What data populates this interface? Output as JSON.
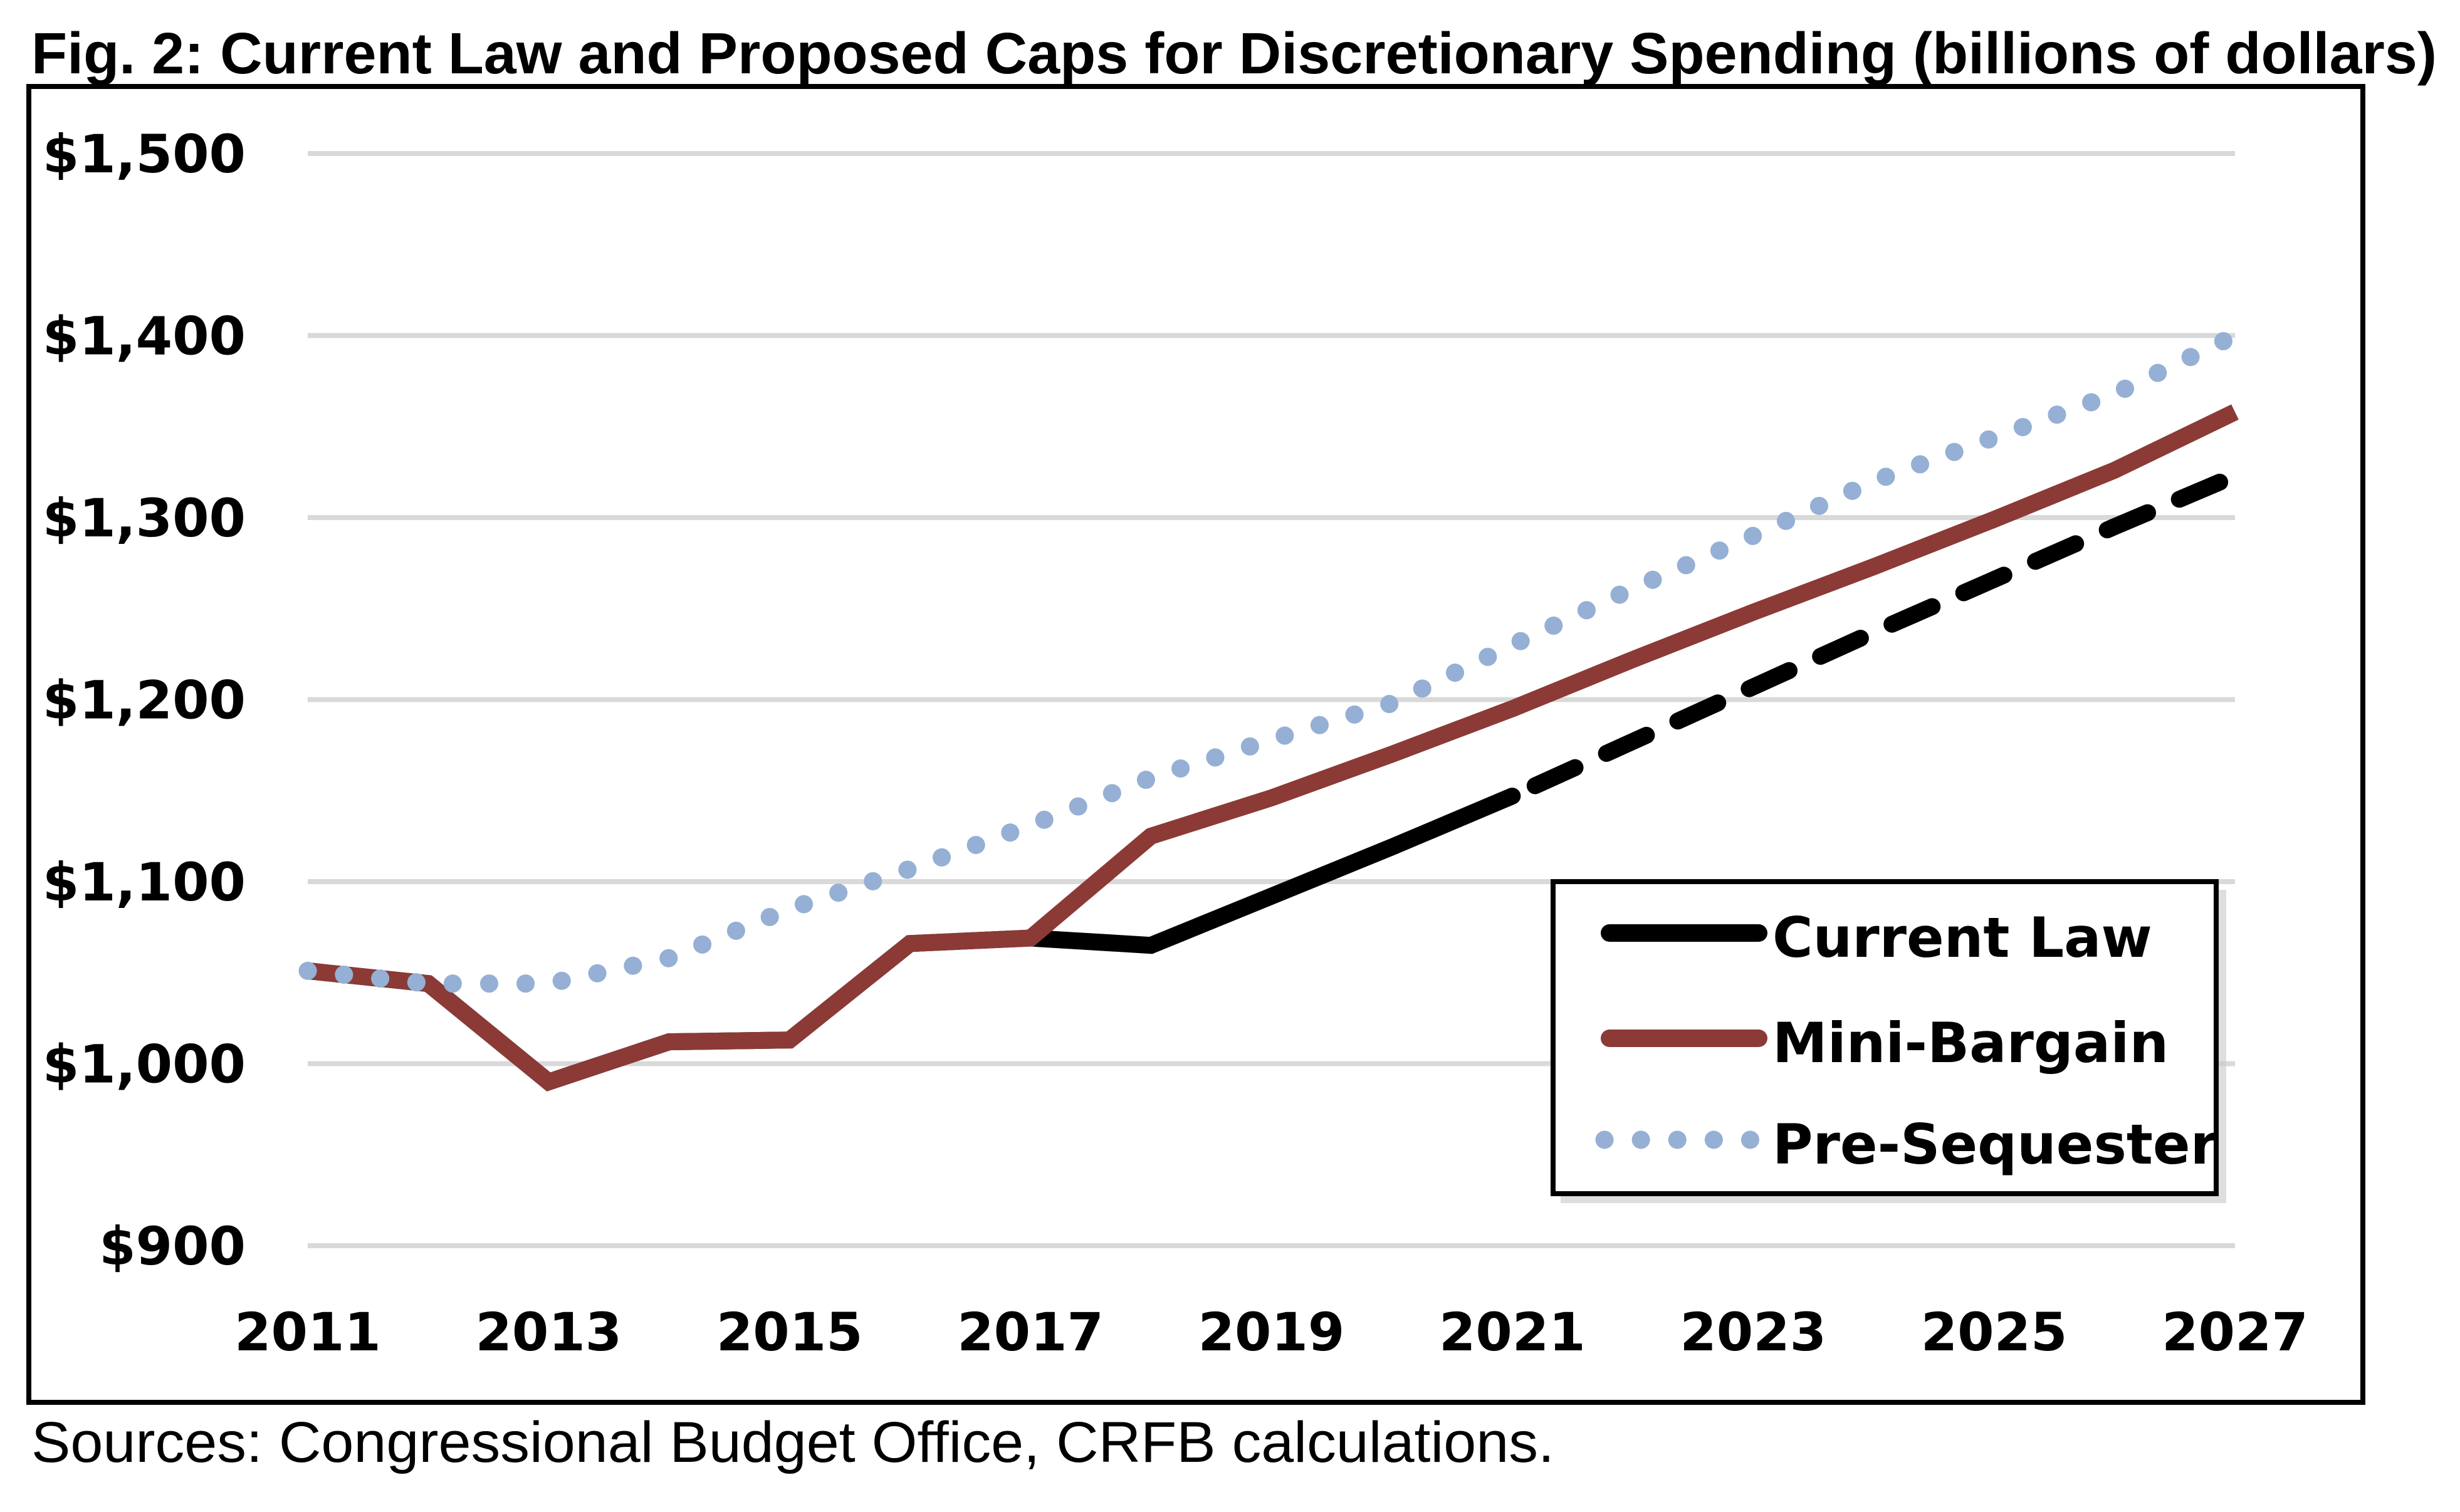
{
  "chart_data": {
    "type": "line",
    "title": "Fig. 2: Current Law and Proposed Caps for Discretionary Spending (billions of dollars)",
    "source": "Sources: Congressional Budget Office, CRFB calculations.",
    "xlabel": "",
    "ylabel": "",
    "x": [
      2011,
      2012,
      2013,
      2014,
      2015,
      2016,
      2017,
      2018,
      2019,
      2020,
      2021,
      2022,
      2023,
      2024,
      2025,
      2026,
      2027
    ],
    "x_tick_labels": [
      "2011",
      "2013",
      "2015",
      "2017",
      "2019",
      "2021",
      "2023",
      "2025",
      "2027"
    ],
    "x_ticks": [
      2011,
      2013,
      2015,
      2017,
      2019,
      2021,
      2023,
      2025,
      2027
    ],
    "xlim": [
      2011,
      2027
    ],
    "y_ticks": [
      900,
      1000,
      1100,
      1200,
      1300,
      1400,
      1500
    ],
    "y_tick_labels": [
      "$900",
      "$1,000",
      "$1,100",
      "$1,200",
      "$1,300",
      "$1,400",
      "$1,500"
    ],
    "ylim": [
      900,
      1500
    ],
    "grid": true,
    "legend_position": "bottom-right",
    "series": [
      {
        "name": "Current Law",
        "color": "#000000",
        "style": "solid through 2021, dashed 2021-2027",
        "dash_from": 2021,
        "values": [
          1051,
          1044,
          990,
          1012,
          1013,
          1066,
          1069,
          1065,
          1092,
          1119,
          1147,
          1177,
          1207,
          1237,
          1266,
          1295,
          1323
        ]
      },
      {
        "name": "Mini-Bargain",
        "color": "#8b3a36",
        "style": "solid",
        "values": [
          1051,
          1044,
          990,
          1012,
          1013,
          1066,
          1069,
          1125,
          1146,
          1170,
          1195,
          1222,
          1248,
          1273,
          1299,
          1326,
          1358
        ]
      },
      {
        "name": "Pre-Sequester",
        "color": "#95b0d4",
        "style": "dotted",
        "values": [
          1051,
          1044,
          1044,
          1058,
          1085,
          1107,
          1131,
          1157,
          1178,
          1198,
          1230,
          1261,
          1290,
          1320,
          1344,
          1368,
          1400
        ]
      }
    ]
  }
}
